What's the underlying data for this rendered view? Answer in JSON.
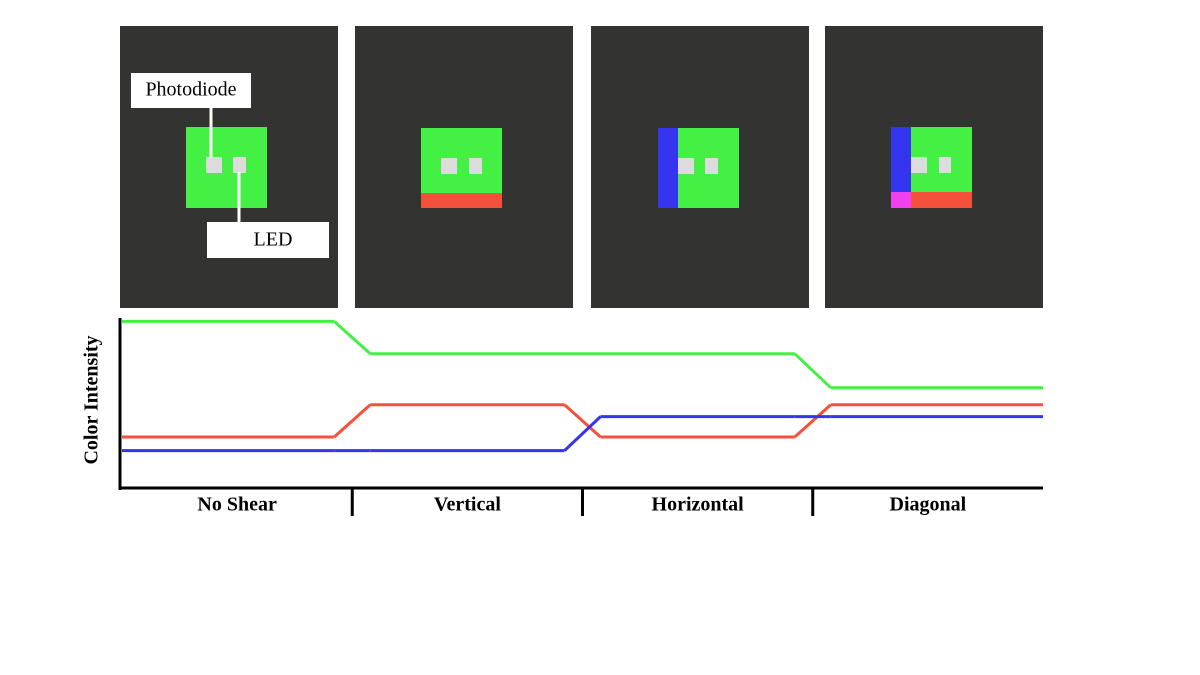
{
  "chart_data": {
    "type": "line",
    "ylabel": "Color Intensity",
    "annotations": [
      "Photodiode",
      "LED"
    ],
    "categories": [
      "No Shear",
      "Vertical",
      "Horizontal",
      "Diagonal"
    ],
    "series": [
      {
        "name": "Green",
        "color": "#44f044",
        "values": [
          98,
          79,
          79,
          59
        ]
      },
      {
        "name": "Red",
        "color": "#f4503c",
        "values": [
          30,
          49,
          30,
          49
        ]
      },
      {
        "name": "Blue",
        "color": "#3535f0",
        "values": [
          22,
          22,
          42,
          42
        ]
      }
    ],
    "ylim": [
      0,
      100
    ]
  }
}
